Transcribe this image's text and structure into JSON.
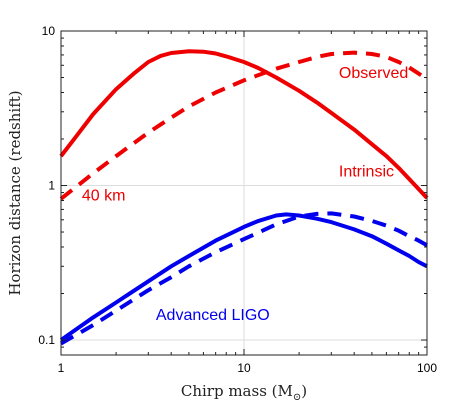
{
  "chart_data": {
    "type": "line",
    "title": "",
    "xlabel": "Chirp mass (M",
    "xlabel_sub": "⊙",
    "xlabel_close": ")",
    "ylabel": "Horizon distance (redshift)",
    "xscale": "log",
    "yscale": "log",
    "xlim": [
      1,
      100
    ],
    "ylim": [
      0.08,
      10
    ],
    "grid": true,
    "x_ticks": [
      {
        "value": 1,
        "label": "1"
      },
      {
        "value": 10,
        "label": "10"
      },
      {
        "value": 100,
        "label": "100"
      }
    ],
    "y_ticks": [
      {
        "value": 0.1,
        "label": "0.1"
      },
      {
        "value": 1,
        "label": "1"
      },
      {
        "value": 10,
        "label": "10"
      }
    ],
    "series": [
      {
        "id": "red-intrinsic",
        "color": "#ee0000",
        "style": "solid",
        "points": [
          [
            1,
            1.55
          ],
          [
            1.2,
            2.05
          ],
          [
            1.5,
            2.9
          ],
          [
            2,
            4.2
          ],
          [
            2.5,
            5.3
          ],
          [
            3,
            6.3
          ],
          [
            3.5,
            6.9
          ],
          [
            4,
            7.2
          ],
          [
            5,
            7.4
          ],
          [
            6,
            7.35
          ],
          [
            7,
            7.15
          ],
          [
            8,
            6.85
          ],
          [
            10,
            6.3
          ],
          [
            12,
            5.75
          ],
          [
            15,
            5.0
          ],
          [
            20,
            4.1
          ],
          [
            25,
            3.45
          ],
          [
            30,
            2.95
          ],
          [
            40,
            2.3
          ],
          [
            50,
            1.85
          ],
          [
            60,
            1.55
          ],
          [
            70,
            1.3
          ],
          [
            80,
            1.1
          ],
          [
            90,
            0.95
          ],
          [
            100,
            0.83
          ]
        ]
      },
      {
        "id": "red-observed",
        "color": "#ee0000",
        "style": "dashed",
        "points": [
          [
            1,
            0.82
          ],
          [
            1.5,
            1.2
          ],
          [
            2,
            1.55
          ],
          [
            3,
            2.2
          ],
          [
            4,
            2.75
          ],
          [
            5,
            3.25
          ],
          [
            7,
            4.0
          ],
          [
            10,
            4.8
          ],
          [
            15,
            5.7
          ],
          [
            20,
            6.3
          ],
          [
            25,
            6.8
          ],
          [
            30,
            7.1
          ],
          [
            40,
            7.25
          ],
          [
            50,
            7.1
          ],
          [
            60,
            6.8
          ],
          [
            70,
            6.3
          ],
          [
            80,
            5.8
          ],
          [
            90,
            5.3
          ],
          [
            100,
            4.9
          ]
        ]
      },
      {
        "id": "blue-intrinsic",
        "color": "#0000ee",
        "style": "solid",
        "points": [
          [
            1,
            0.1
          ],
          [
            1.5,
            0.14
          ],
          [
            2,
            0.175
          ],
          [
            3,
            0.24
          ],
          [
            4,
            0.3
          ],
          [
            5,
            0.35
          ],
          [
            7,
            0.44
          ],
          [
            10,
            0.54
          ],
          [
            12,
            0.59
          ],
          [
            15,
            0.64
          ],
          [
            17,
            0.65
          ],
          [
            20,
            0.64
          ],
          [
            25,
            0.61
          ],
          [
            30,
            0.58
          ],
          [
            40,
            0.52
          ],
          [
            50,
            0.47
          ],
          [
            60,
            0.42
          ],
          [
            70,
            0.38
          ],
          [
            80,
            0.35
          ],
          [
            90,
            0.32
          ],
          [
            100,
            0.3
          ]
        ]
      },
      {
        "id": "blue-observed",
        "color": "#0000ee",
        "style": "dashed",
        "points": [
          [
            1,
            0.095
          ],
          [
            1.5,
            0.125
          ],
          [
            2,
            0.155
          ],
          [
            3,
            0.21
          ],
          [
            4,
            0.255
          ],
          [
            5,
            0.3
          ],
          [
            7,
            0.37
          ],
          [
            10,
            0.45
          ],
          [
            15,
            0.56
          ],
          [
            20,
            0.63
          ],
          [
            25,
            0.655
          ],
          [
            30,
            0.66
          ],
          [
            40,
            0.63
          ],
          [
            50,
            0.59
          ],
          [
            60,
            0.55
          ],
          [
            70,
            0.51
          ],
          [
            80,
            0.47
          ],
          [
            90,
            0.44
          ],
          [
            100,
            0.41
          ]
        ]
      }
    ],
    "annotations": [
      {
        "id": "label-observed",
        "text": "Observed",
        "color": "#ee0000",
        "x": 33,
        "y": 4.95,
        "anchor": "start"
      },
      {
        "id": "label-intrinsic",
        "text": "Intrinsic",
        "color": "#ee0000",
        "x": 33,
        "y": 1.14,
        "anchor": "start"
      },
      {
        "id": "label-40km",
        "text": "40 km",
        "color": "#ee0000",
        "x": 1.3,
        "y": 0.8,
        "anchor": "start"
      },
      {
        "id": "label-advanced-ligo",
        "text": "Advanced LIGO",
        "color": "#0000ee",
        "x": 3.3,
        "y": 0.135,
        "anchor": "start"
      }
    ]
  }
}
